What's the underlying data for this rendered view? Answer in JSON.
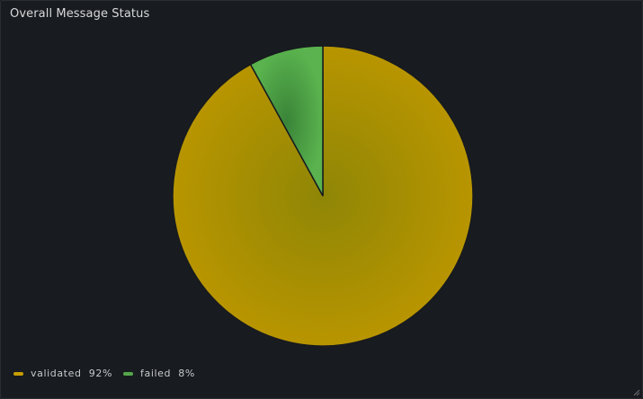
{
  "panel": {
    "title": "Overall Message Status"
  },
  "colors": {
    "validated": "#c79e00",
    "failed": "#56a64b",
    "background": "#181b1f"
  },
  "chart_data": {
    "type": "pie",
    "title": "Overall Message Status",
    "legend_position": "bottom-left",
    "slices": [
      {
        "name": "validated",
        "value": 92,
        "percent_label": "92%",
        "color": "#c79e00"
      },
      {
        "name": "failed",
        "value": 8,
        "percent_label": "8%",
        "color": "#56a64b"
      }
    ]
  }
}
